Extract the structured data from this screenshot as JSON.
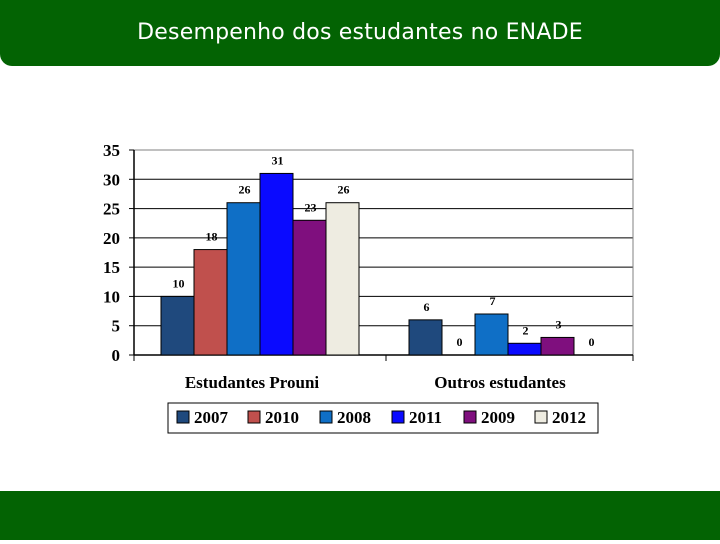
{
  "slide": {
    "title": "Desempenho dos estudantes no ENADE"
  },
  "colors": {
    "title_bar": "#036303",
    "footer_bar": "#036303",
    "title_text": "#ffffff"
  },
  "chart_data": {
    "type": "bar",
    "title": "",
    "xlabel": "",
    "ylabel": "",
    "categories": [
      "Estudantes Prouni",
      "Outros estudantes"
    ],
    "ylim": [
      0,
      35
    ],
    "yticks": [
      0,
      5,
      10,
      15,
      20,
      25,
      30,
      35
    ],
    "grid": true,
    "legend_position": "bottom",
    "series": [
      {
        "name": "2007",
        "color": "#1f497d",
        "values": [
          10,
          6
        ]
      },
      {
        "name": "2010",
        "color": "#c0504d",
        "values": [
          18,
          0
        ]
      },
      {
        "name": "2008",
        "color": "#0f6fc6",
        "values": [
          26,
          7
        ]
      },
      {
        "name": "2011",
        "color": "#0a0aff",
        "values": [
          31,
          2
        ]
      },
      {
        "name": "2009",
        "color": "#7f0f7e",
        "values": [
          23,
          3
        ]
      },
      {
        "name": "2012",
        "color": "#eeece1",
        "values": [
          26,
          0
        ]
      }
    ]
  }
}
